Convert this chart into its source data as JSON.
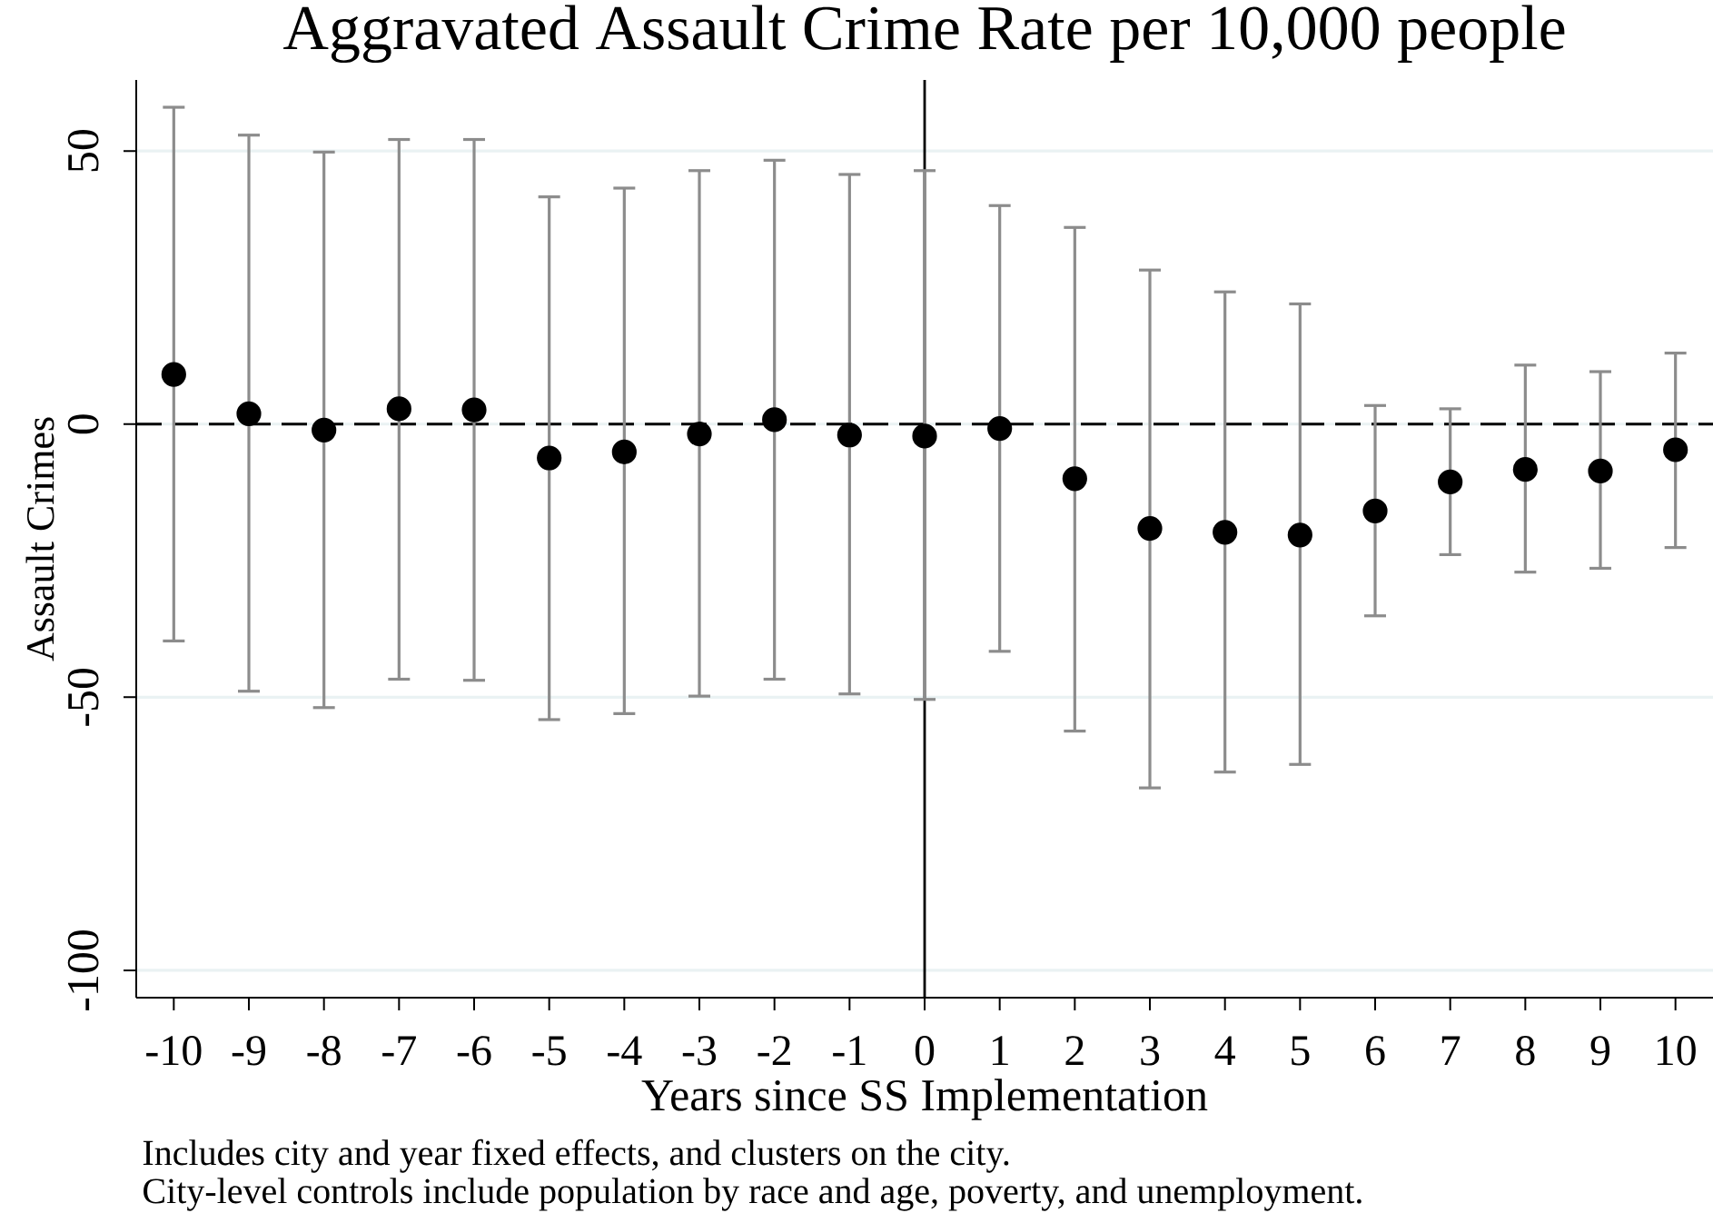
{
  "chart_data": {
    "type": "scatter",
    "title": "Aggravated Assault Crime Rate per 10,000 people",
    "xlabel": "Years since SS Implementation",
    "ylabel": "Assault Crimes",
    "annotations": [
      "Includes city and year fixed effects, and clusters on the city.",
      "City-level controls include population by race and age, poverty, and unemployment."
    ],
    "x": [
      -10,
      -9,
      -8,
      -7,
      -6,
      -5,
      -4,
      -3,
      -2,
      -1,
      0,
      1,
      2,
      3,
      4,
      5,
      6,
      7,
      8,
      9,
      10
    ],
    "series": [
      {
        "color": "#000000",
        "values": [
          9.1,
          1.9,
          -1.1,
          2.8,
          2.6,
          -6.2,
          -5.1,
          -1.8,
          0.8,
          -2.0,
          -2.2,
          -0.8,
          -10.0,
          -19.1,
          -19.8,
          -20.3,
          -15.9,
          -10.6,
          -8.3,
          -8.6,
          -4.7
        ],
        "errors": [
          [
            -39.7,
            58.0
          ],
          [
            -48.9,
            52.9
          ],
          [
            -51.9,
            49.8
          ],
          [
            -46.7,
            52.1
          ],
          [
            -46.9,
            52.1
          ],
          [
            -54.1,
            41.6
          ],
          [
            -53.0,
            43.2
          ],
          [
            -49.8,
            46.4
          ],
          [
            -46.7,
            48.3
          ],
          [
            -49.4,
            45.7
          ],
          [
            -50.4,
            46.4
          ],
          [
            -41.6,
            40.0
          ],
          [
            -56.2,
            36.0
          ],
          [
            -66.6,
            28.2
          ],
          [
            -63.7,
            24.2
          ],
          [
            -62.3,
            22.0
          ],
          [
            -35.1,
            3.4
          ],
          [
            -23.9,
            2.8
          ],
          [
            -27.1,
            10.8
          ],
          [
            -26.4,
            9.6
          ],
          [
            -22.6,
            13.0
          ]
        ]
      }
    ],
    "marker": "circle",
    "xlim": [
      -10.5,
      10.5
    ],
    "ylim": [
      -105,
      63
    ],
    "xticks": [
      -10,
      -9,
      -8,
      -7,
      -6,
      -5,
      -4,
      -3,
      -2,
      -1,
      0,
      1,
      2,
      3,
      4,
      5,
      6,
      7,
      8,
      9,
      10
    ],
    "yticks": [
      -100,
      -50,
      0,
      50
    ],
    "grid": "y",
    "ref_lines": [
      {
        "axis": "y",
        "value": 0,
        "color": "#000000",
        "line_style": "dashed"
      },
      {
        "axis": "x",
        "value": 0,
        "color": "#000000",
        "line_style": "solid"
      }
    ]
  }
}
